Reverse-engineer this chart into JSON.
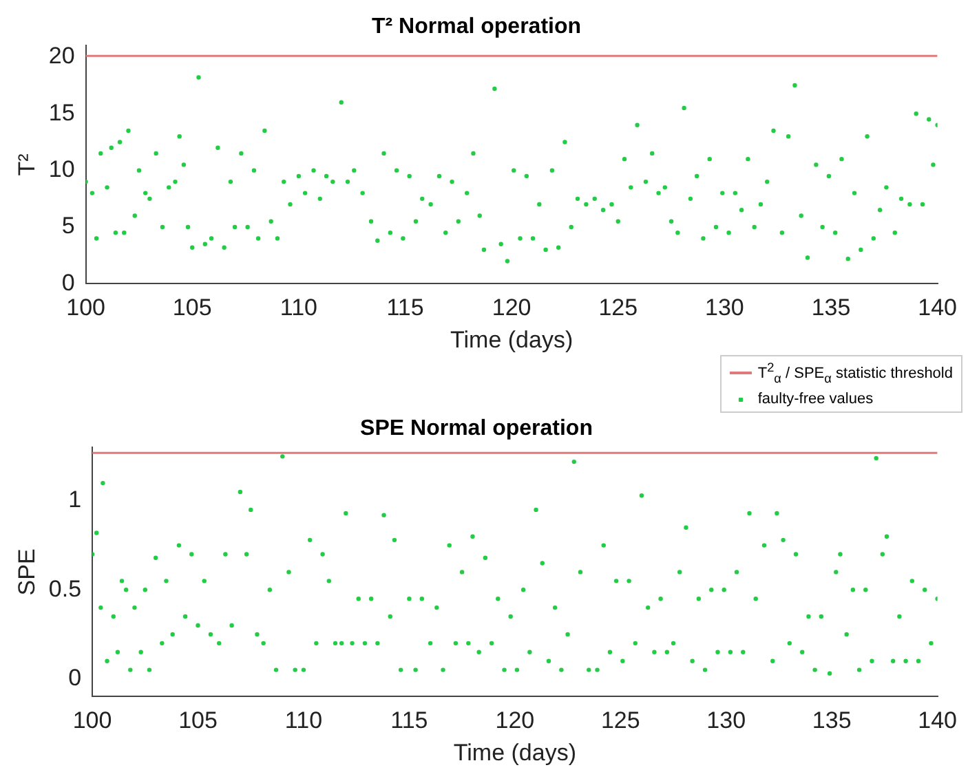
{
  "chart_data": [
    {
      "type": "scatter",
      "title": "T² Normal operation",
      "xlabel": "Time (days)",
      "ylabel": "T²",
      "xlim": [
        100,
        140
      ],
      "xticks": [
        100,
        105,
        110,
        115,
        120,
        125,
        130,
        135,
        140
      ],
      "ylim": [
        0,
        21
      ],
      "yticks": [
        0,
        5,
        10,
        15,
        20
      ],
      "grid": false,
      "legend": "bottom right",
      "marker": "circle",
      "series": [
        {
          "type": "line",
          "name": "T$^{2}$$_{α}$ / SPE$_{α}$ statistic threshold",
          "color": "#e07a7a",
          "marker": "none",
          "x": [
            100,
            140
          ],
          "values": [
            20.1,
            20.1
          ]
        },
        {
          "name": "faulty-free values",
          "color": "#22cc44",
          "x": [
            100.0,
            100.3,
            100.5,
            100.7,
            101.0,
            101.2,
            101.4,
            101.6,
            101.8,
            102.0,
            102.3,
            102.5,
            102.8,
            103.0,
            103.3,
            103.6,
            103.9,
            104.2,
            104.4,
            104.6,
            104.8,
            105.0,
            105.3,
            105.6,
            105.9,
            106.2,
            106.5,
            106.8,
            107.0,
            107.3,
            107.6,
            107.9,
            108.1,
            108.4,
            108.7,
            109.0,
            109.3,
            109.6,
            110.0,
            110.3,
            110.7,
            111.0,
            111.3,
            111.6,
            112.0,
            112.3,
            112.6,
            113.0,
            113.4,
            113.7,
            114.0,
            114.3,
            114.6,
            114.9,
            115.2,
            115.5,
            115.8,
            116.2,
            116.6,
            116.9,
            117.2,
            117.5,
            117.9,
            118.2,
            118.5,
            118.7,
            119.2,
            119.5,
            119.8,
            120.1,
            120.4,
            120.7,
            121.0,
            121.3,
            121.6,
            121.9,
            122.2,
            122.5,
            122.8,
            123.1,
            123.5,
            123.9,
            124.3,
            124.7,
            125.0,
            125.3,
            125.6,
            125.9,
            126.3,
            126.6,
            126.9,
            127.2,
            127.5,
            127.8,
            128.1,
            128.4,
            128.7,
            129.0,
            129.3,
            129.6,
            129.9,
            130.2,
            130.5,
            130.8,
            131.1,
            131.4,
            131.7,
            132.0,
            132.3,
            132.7,
            133.0,
            133.3,
            133.6,
            133.9,
            134.3,
            134.6,
            134.9,
            135.2,
            135.5,
            135.8,
            136.1,
            136.4,
            136.7,
            137.0,
            137.3,
            137.6,
            138.0,
            138.3,
            138.7,
            139.0,
            139.3,
            139.6,
            139.8,
            140.0
          ],
          "values": [
            9,
            8,
            4,
            11.5,
            8.5,
            12,
            4.5,
            12.5,
            4.5,
            13.5,
            6,
            10,
            8,
            7.5,
            11.5,
            5,
            8.5,
            9,
            13,
            10.5,
            5,
            3.2,
            18.2,
            3.5,
            4,
            12,
            3.2,
            9,
            5,
            11.5,
            5,
            10,
            4,
            13.5,
            5.5,
            4,
            9,
            7,
            9.5,
            8,
            10,
            7.5,
            9.5,
            9,
            16,
            9,
            10,
            8,
            5.5,
            3.8,
            11.5,
            4.5,
            10,
            4,
            9.5,
            5.5,
            7.5,
            7,
            9.5,
            4.5,
            9,
            5.5,
            8,
            11.5,
            6,
            3,
            17.2,
            3.5,
            2,
            10,
            4,
            9.5,
            4,
            7,
            3,
            10,
            3.2,
            12.5,
            5,
            7.5,
            7,
            7.5,
            6.5,
            7,
            5.5,
            11,
            8.5,
            14,
            9,
            11.5,
            8,
            8.5,
            5.5,
            4.5,
            15.5,
            7.5,
            9.5,
            4,
            11,
            5,
            8,
            4.5,
            8,
            6.5,
            11,
            5,
            7,
            9,
            13.5,
            4.5,
            13,
            17.5,
            6,
            2.3,
            10.5,
            5,
            9.5,
            4.5,
            11,
            2.2,
            8,
            3,
            13,
            4,
            6.5,
            8.5,
            4.5,
            7.5,
            7,
            15,
            7,
            14.5,
            10.5,
            14
          ]
        }
      ]
    },
    {
      "type": "scatter",
      "title": "SPE Normal operation",
      "xlabel": "Time (days)",
      "ylabel": "SPE",
      "xlim": [
        100,
        140
      ],
      "xticks": [
        100,
        105,
        110,
        115,
        120,
        125,
        130,
        135,
        140
      ],
      "ylim": [
        -0.1,
        1.3
      ],
      "yticks": [
        0,
        0.5,
        1
      ],
      "grid": false,
      "marker": "circle",
      "series": [
        {
          "type": "line",
          "color": "#e07a7a",
          "marker": "none",
          "x": [
            100,
            140
          ],
          "values": [
            1.27,
            1.27
          ]
        },
        {
          "color": "#22cc44",
          "x": [
            100.0,
            100.2,
            100.4,
            100.5,
            100.7,
            101.0,
            101.2,
            101.4,
            101.6,
            101.8,
            102.0,
            102.3,
            102.5,
            102.7,
            103.0,
            103.3,
            103.5,
            103.8,
            104.1,
            104.4,
            104.7,
            105.0,
            105.3,
            105.6,
            106.0,
            106.3,
            106.6,
            107.0,
            107.3,
            107.5,
            107.8,
            108.1,
            108.4,
            108.7,
            109.0,
            109.3,
            109.6,
            110.0,
            110.3,
            110.6,
            110.9,
            111.2,
            111.5,
            111.8,
            112.0,
            112.3,
            112.6,
            112.9,
            113.2,
            113.5,
            113.8,
            114.1,
            114.3,
            114.6,
            115.0,
            115.3,
            115.6,
            116.0,
            116.3,
            116.6,
            116.9,
            117.2,
            117.5,
            117.8,
            118.0,
            118.3,
            118.6,
            118.9,
            119.2,
            119.5,
            119.8,
            120.1,
            120.4,
            120.7,
            121.0,
            121.3,
            121.6,
            121.9,
            122.2,
            122.5,
            122.8,
            123.1,
            123.5,
            123.9,
            124.2,
            124.5,
            124.8,
            125.1,
            125.4,
            125.7,
            126.0,
            126.3,
            126.6,
            126.9,
            127.2,
            127.5,
            127.8,
            128.1,
            128.4,
            128.7,
            129.0,
            129.3,
            129.6,
            129.9,
            130.2,
            130.5,
            130.8,
            131.1,
            131.4,
            131.8,
            132.2,
            132.4,
            132.7,
            133.0,
            133.3,
            133.6,
            133.9,
            134.2,
            134.5,
            134.9,
            135.2,
            135.4,
            135.7,
            136.0,
            136.3,
            136.6,
            136.9,
            137.1,
            137.4,
            137.6,
            137.9,
            138.2,
            138.5,
            138.8,
            139.1,
            139.4,
            139.7,
            140.0
          ],
          "values": [
            0.7,
            0.82,
            0.4,
            1.1,
            0.1,
            0.35,
            0.15,
            0.55,
            0.5,
            0.05,
            0.4,
            0.15,
            0.5,
            0.05,
            0.68,
            0.2,
            0.55,
            0.25,
            0.75,
            0.35,
            0.7,
            0.3,
            0.55,
            0.25,
            0.2,
            0.7,
            0.3,
            1.05,
            0.7,
            0.95,
            0.25,
            0.2,
            0.5,
            0.05,
            1.25,
            0.6,
            0.05,
            0.05,
            0.78,
            0.2,
            0.7,
            0.55,
            0.2,
            0.2,
            0.93,
            0.2,
            0.45,
            0.2,
            0.45,
            0.2,
            0.92,
            0.35,
            0.78,
            0.05,
            0.45,
            0.05,
            0.45,
            0.2,
            0.4,
            0.05,
            0.75,
            0.2,
            0.6,
            0.2,
            0.8,
            0.15,
            0.68,
            0.2,
            0.45,
            0.05,
            0.35,
            0.05,
            0.5,
            0.15,
            0.95,
            0.65,
            0.1,
            0.4,
            0.05,
            0.25,
            1.22,
            0.6,
            0.05,
            0.05,
            0.75,
            0.15,
            0.55,
            0.1,
            0.55,
            0.2,
            1.03,
            0.4,
            0.15,
            0.45,
            0.15,
            0.2,
            0.6,
            0.85,
            0.1,
            0.45,
            0.05,
            0.5,
            0.15,
            0.5,
            0.15,
            0.6,
            0.15,
            0.93,
            0.45,
            0.75,
            0.1,
            0.93,
            0.78,
            0.2,
            0.7,
            0.15,
            0.35,
            0.05,
            0.35,
            0.03,
            0.6,
            0.7,
            0.25,
            0.5,
            0.05,
            0.5,
            0.1,
            1.24,
            0.7,
            0.8,
            0.1,
            0.35,
            0.1,
            0.55,
            0.1,
            0.5,
            0.2,
            0.45
          ]
        }
      ]
    }
  ]
}
